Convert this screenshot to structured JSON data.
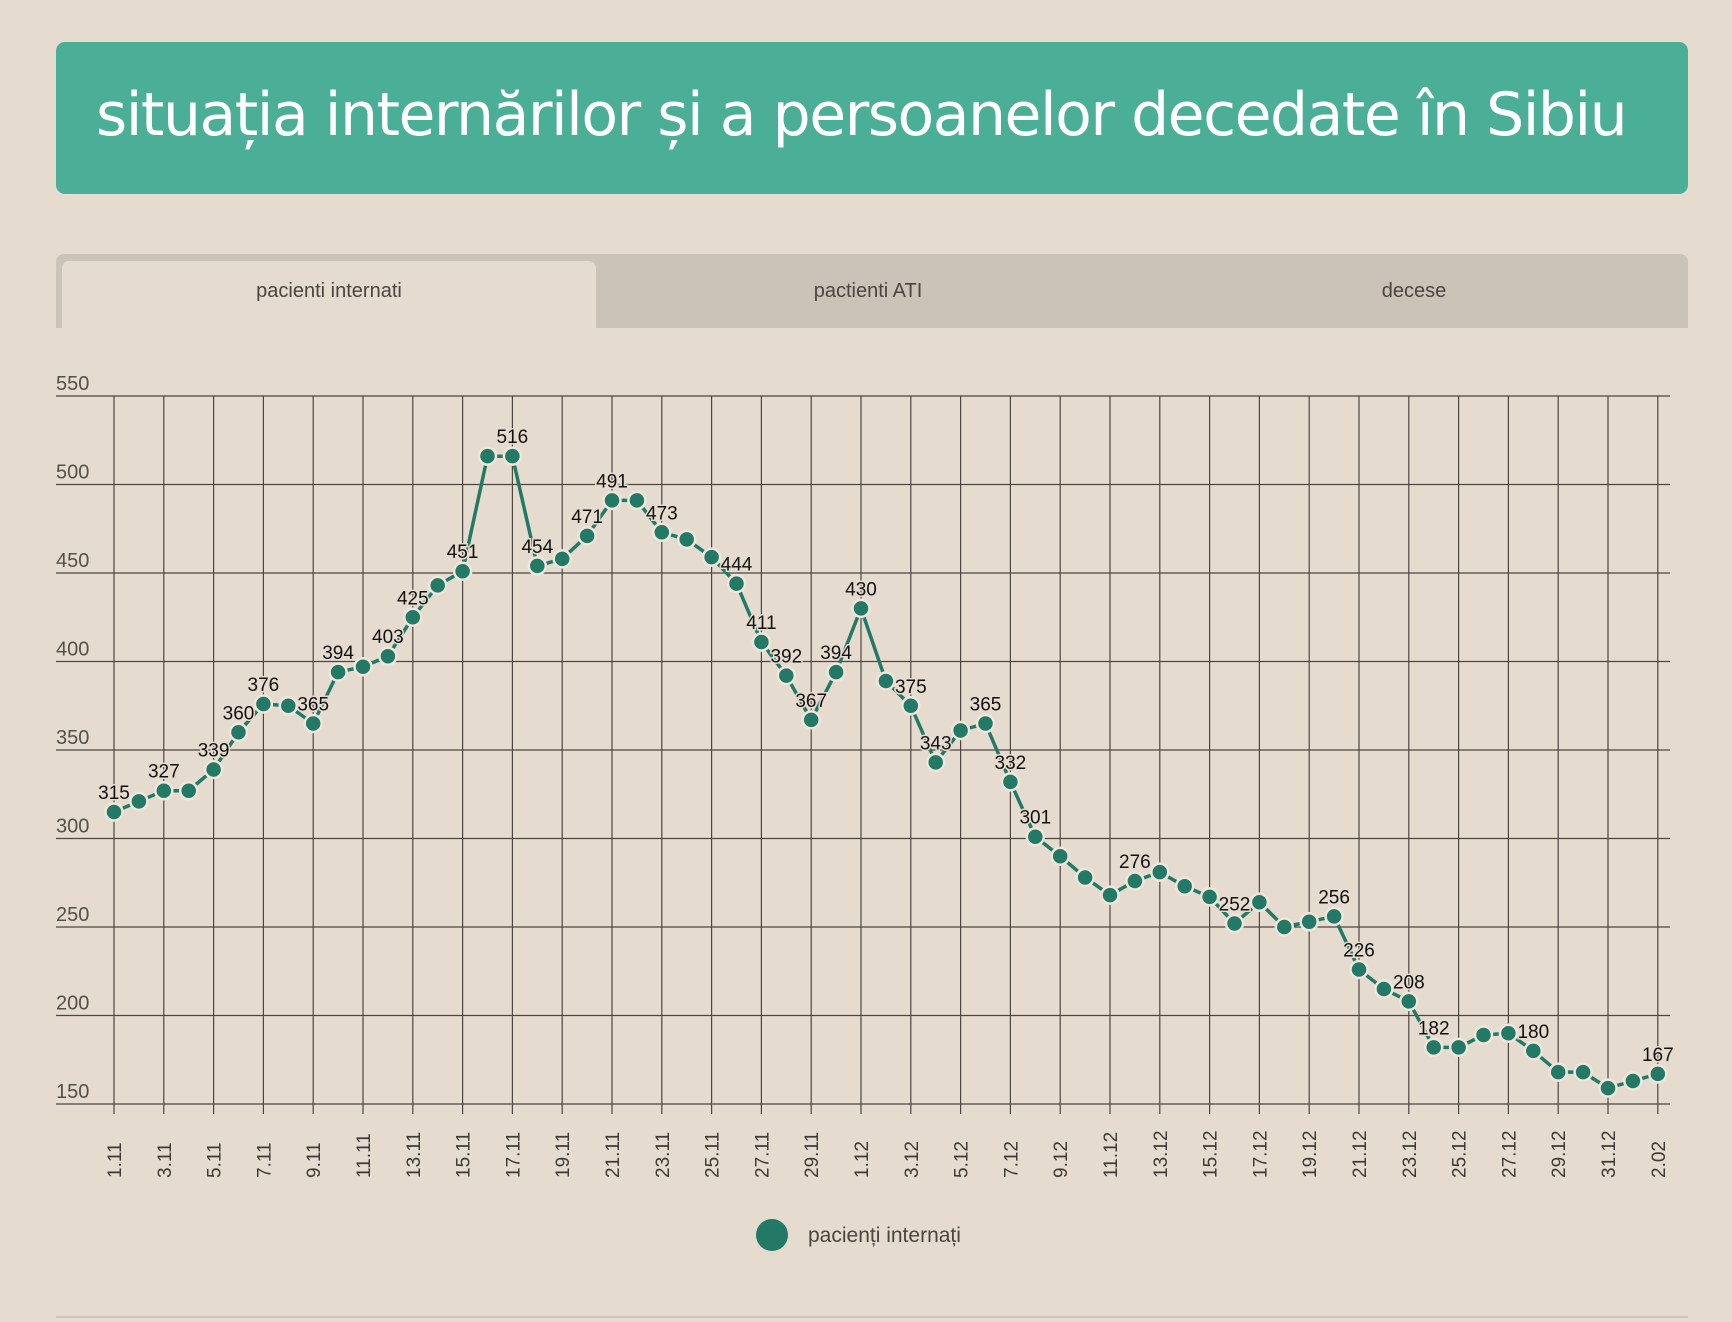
{
  "header": {
    "title": "situația internărilor și a persoanelor decedate în Sibiu"
  },
  "tabs": [
    {
      "label": "pacienti internati",
      "active": true
    },
    {
      "label": "pactienti ATI",
      "active": false
    },
    {
      "label": "decese",
      "active": false
    }
  ],
  "colors": {
    "header": "#4aaf96",
    "series": "#227a66",
    "background": "#e5dbcf",
    "tabbar": "#cbc3b8"
  },
  "chart_data": {
    "type": "line",
    "title": "",
    "xlabel": "",
    "ylabel": "",
    "ylim": [
      150,
      550
    ],
    "yticks": [
      150,
      200,
      250,
      300,
      350,
      400,
      450,
      500,
      550
    ],
    "grid": true,
    "legend_position": "bottom-center",
    "tick_labels": [
      "1.11",
      "3.11",
      "5.11",
      "7.11",
      "9.11",
      "11.11",
      "13.11",
      "15.11",
      "17.11",
      "19.11",
      "21.11",
      "23.11",
      "25.11",
      "27.11",
      "29.11",
      "1.12",
      "3.12",
      "5.12",
      "7.12",
      "9.12",
      "11.12",
      "13.12",
      "15.12",
      "17.12",
      "19.12",
      "21.12",
      "23.12",
      "25.12",
      "27.12",
      "29.12",
      "31.12",
      "2.02"
    ],
    "categories": [
      "1.11",
      "2.11",
      "3.11",
      "4.11",
      "5.11",
      "6.11",
      "7.11",
      "8.11",
      "9.11",
      "10.11",
      "11.11",
      "12.11",
      "13.11",
      "14.11",
      "15.11",
      "16.11",
      "17.11",
      "18.11",
      "19.11",
      "20.11",
      "21.11",
      "22.11",
      "23.11",
      "24.11",
      "25.11",
      "26.11",
      "27.11",
      "28.11",
      "29.11",
      "30.11",
      "1.12",
      "2.12",
      "3.12",
      "4.12",
      "5.12",
      "6.12",
      "7.12",
      "8.12",
      "9.12",
      "10.12",
      "11.12",
      "12.12",
      "13.12",
      "14.12",
      "15.12",
      "16.12",
      "17.12",
      "18.12",
      "19.12",
      "20.12",
      "21.12",
      "22.12",
      "23.12",
      "24.12",
      "25.12",
      "26.12",
      "27.12",
      "28.12",
      "29.12",
      "30.12",
      "31.12",
      "1.02",
      "2.02"
    ],
    "series": [
      {
        "name": "pacienți internați",
        "values": [
          315,
          321,
          327,
          327,
          339,
          360,
          376,
          375,
          365,
          394,
          397,
          403,
          425,
          443,
          451,
          516,
          516,
          454,
          458,
          471,
          491,
          491,
          473,
          469,
          459,
          444,
          411,
          392,
          367,
          394,
          430,
          389,
          375,
          343,
          361,
          365,
          332,
          301,
          290,
          278,
          268,
          276,
          281,
          273,
          267,
          252,
          264,
          250,
          253,
          256,
          226,
          215,
          208,
          182,
          182,
          189,
          190,
          180,
          168,
          168,
          159,
          163,
          167
        ],
        "labels": {
          "0": 315,
          "2": 327,
          "4": 339,
          "5": 360,
          "6": 376,
          "8": 365,
          "9": 394,
          "11": 403,
          "12": 425,
          "14": 451,
          "16": 516,
          "17": 454,
          "19": 471,
          "20": 491,
          "22": 473,
          "25": 444,
          "26": 411,
          "27": 392,
          "28": 367,
          "29": 394,
          "30": 430,
          "32": 375,
          "33": 343,
          "35": 365,
          "36": 332,
          "37": 301,
          "41": 276,
          "45": 252,
          "49": 256,
          "50": 226,
          "52": 208,
          "53": 182,
          "57": 180,
          "62": 167
        }
      }
    ]
  }
}
